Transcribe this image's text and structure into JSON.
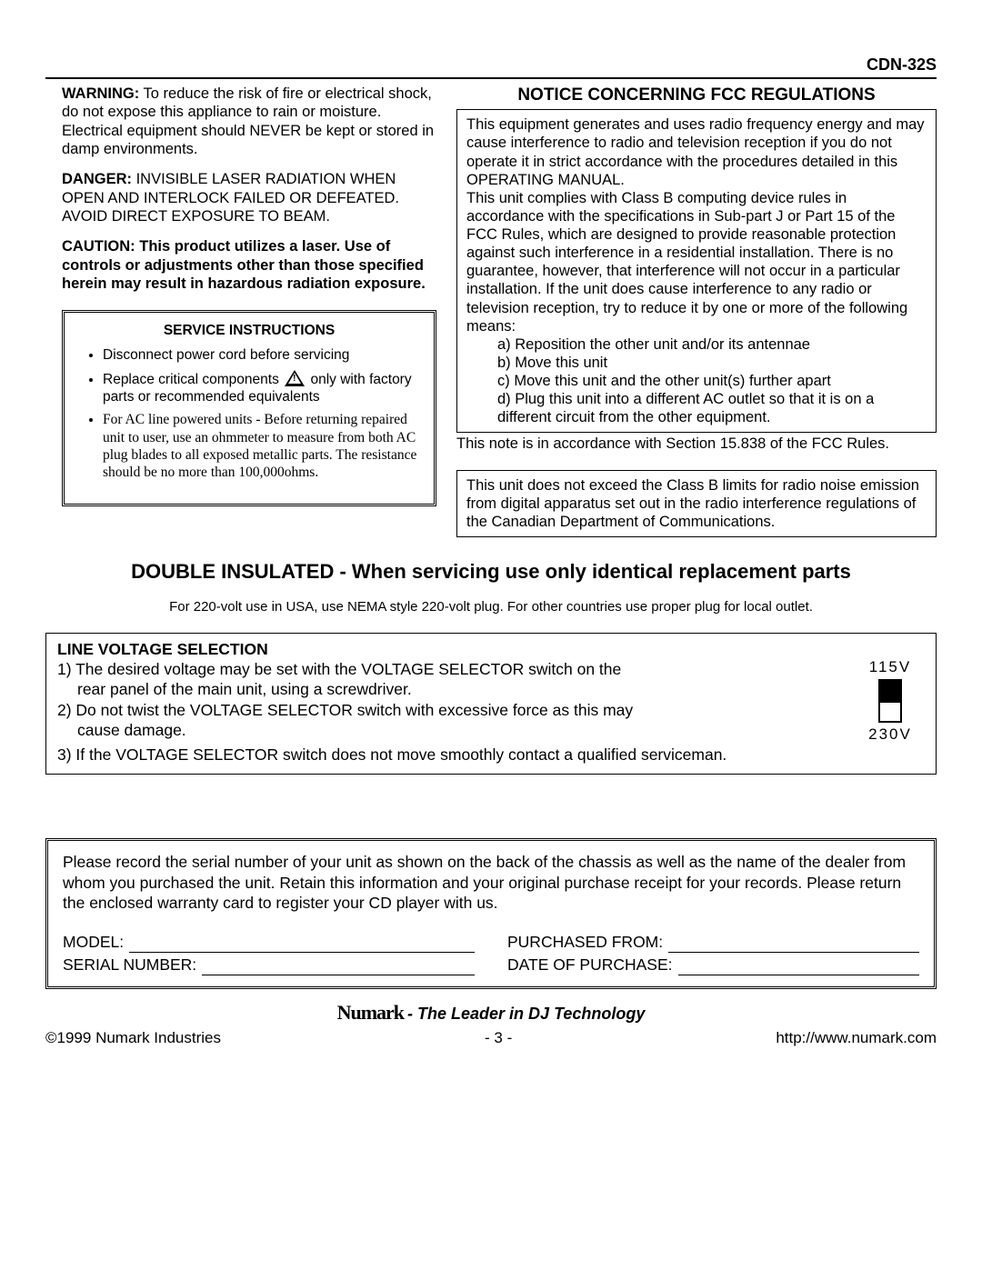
{
  "model_header": "CDN-32S",
  "warning": {
    "lead": "WARNING:",
    "text": " To reduce the risk of fire or electrical shock, do not expose this appliance to rain or moisture. Electrical equipment should NEVER be kept or stored in damp environments."
  },
  "danger": {
    "lead": "DANGER:",
    "text": "  INVISIBLE LASER RADIATION WHEN OPEN AND INTERLOCK FAILED OR DEFEATED. AVOID DIRECT EXPOSURE TO BEAM."
  },
  "caution": {
    "lead": "CAUTION:  This product utilizes a laser.  Use of controls or adjustments other than those specified herein may result in hazardous radiation exposure."
  },
  "service": {
    "title": "SERVICE INSTRUCTIONS",
    "items": [
      "Disconnect power cord before servicing",
      "Replace critical components __ICON__  only with factory parts or recommended equivalents",
      "For AC line powered units - Before returning repaired unit to user, use an ohmmeter to measure from both AC plug blades to all exposed metallic parts.  The resistance should be no more than 100,000ohms."
    ]
  },
  "fcc": {
    "title": "NOTICE CONCERNING FCC REGULATIONS",
    "para1": "This equipment generates and uses radio frequency energy and may cause interference to radio and television reception if you do not operate it in strict accordance with the procedures detailed in this OPERATING MANUAL.",
    "para2": "This unit complies with Class B computing device rules in accordance with the specifications in Sub-part J or Part 15 of the FCC Rules, which are designed to provide reasonable protection against such interference in a residential installation.  There is no guarantee, however, that interference will not occur in a particular installation.  If the unit does cause interference to any radio or television reception, try to reduce it by one or more of the following means:",
    "means": [
      "a) Reposition the other unit and/or its antennae",
      "b) Move this unit",
      "c) Move this unit and the other unit(s) further apart",
      "d) Plug this unit into a different AC outlet so that it is on a different circuit from the other equipment."
    ],
    "accord": "This note is in accordance with Section 15.838 of the FCC Rules."
  },
  "canada": "This unit does not exceed the Class B limits for radio noise emission from digital apparatus set out in the radio interference regulations of the Canadian Department of Communications.",
  "double_insulated": "DOUBLE INSULATED - When servicing use only identical replacement parts",
  "plug_note": "For 220-volt use in USA, use NEMA style 220-volt plug.  For other countries use proper plug for local outlet.",
  "voltage": {
    "title": "LINE VOLTAGE SELECTION",
    "line1a": "1) The desired voltage may be set with the VOLTAGE SELECTOR  switch  on the",
    "line1b": "rear panel of the main unit, using a screwdriver.",
    "line2a": "2) Do not twist the VOLTAGE SELECTOR switch with excessive force as this may",
    "line2b": "cause damage.",
    "line3": "3) If the VOLTAGE SELECTOR switch does not move smoothly contact a qualified serviceman.",
    "label_top": "115V",
    "label_bot": "230V"
  },
  "serial": {
    "para": "Please record the serial number of your unit as shown on the back of the chassis as well as the name of the dealer from whom you purchased the unit.  Retain this information and your original purchase receipt for your records.  Please return the enclosed warranty card to register your CD player with us.",
    "f_model": "MODEL:",
    "f_serial": "SERIAL NUMBER:",
    "f_purchfrom": "PURCHASED FROM:",
    "f_date": "DATE OF PURCHASE:"
  },
  "footer": {
    "brand": "Numark",
    "tag": "- The Leader in DJ Technology",
    "copyright": "©1999 Numark Industries",
    "page": "- 3 -",
    "url": "http://www.numark.com"
  }
}
